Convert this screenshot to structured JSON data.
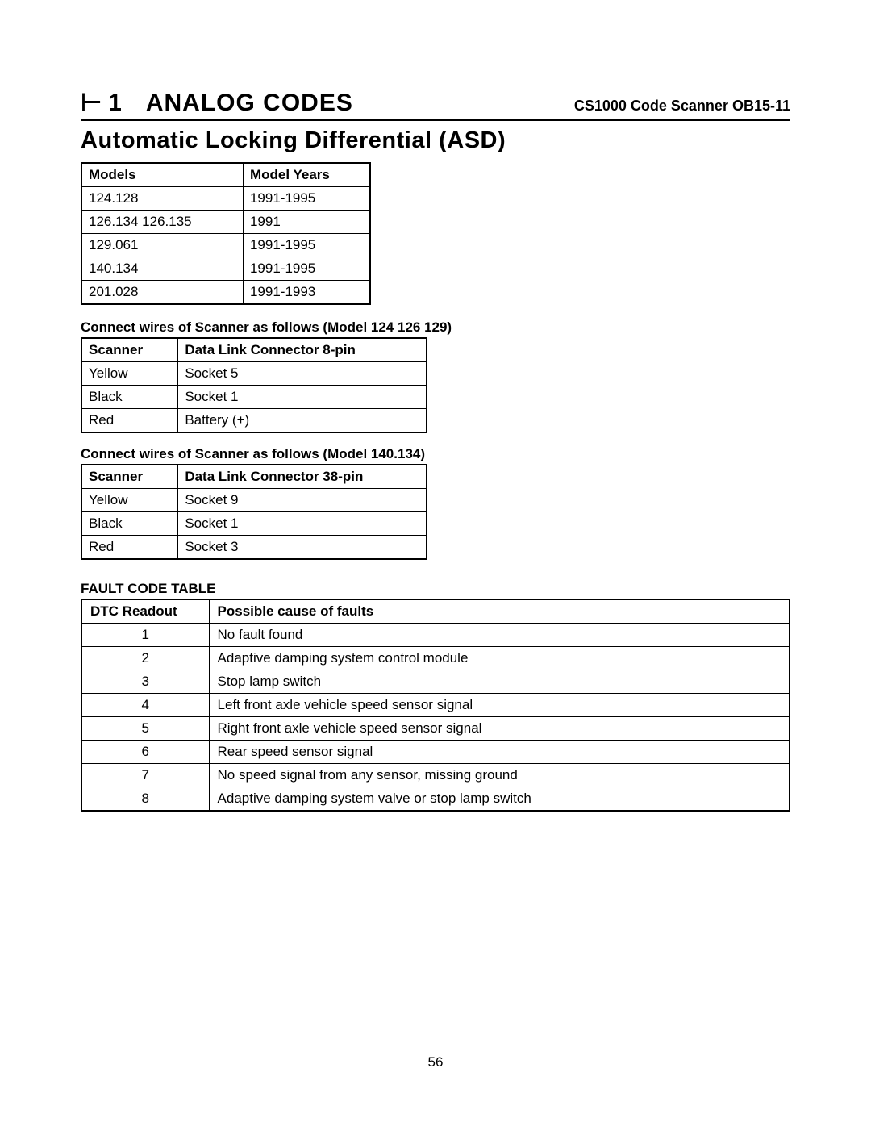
{
  "header": {
    "icon_glyph": "⊢",
    "icon_num": "1",
    "title": "ANALOG CODES",
    "subtitle": "CS1000 Code Scanner  OB15-11"
  },
  "section_title": "Automatic Locking Differential (ASD)",
  "models_table": {
    "columns": [
      "Models",
      "Model Years"
    ],
    "rows": [
      [
        "124.128",
        "1991-1995"
      ],
      [
        "126.134  126.135",
        "1991"
      ],
      [
        "129.061",
        "1991-1995"
      ],
      [
        "140.134",
        "1991-1995"
      ],
      [
        "201.028",
        "1991-1993"
      ]
    ]
  },
  "conn1": {
    "caption": "Connect wires of Scanner as follows (Model 124 126 129)",
    "columns": [
      "Scanner",
      "Data Link Connector 8-pin"
    ],
    "rows": [
      [
        "Yellow",
        "Socket  5"
      ],
      [
        "Black",
        "Socket  1"
      ],
      [
        "Red",
        "Battery (+)"
      ]
    ]
  },
  "conn2": {
    "caption": "Connect wires of Scanner as follows (Model 140.134)",
    "columns": [
      "Scanner",
      "Data Link Connector 38-pin"
    ],
    "rows": [
      [
        "Yellow",
        "Socket  9"
      ],
      [
        "Black",
        "Socket  1"
      ],
      [
        "Red",
        "Socket  3"
      ]
    ]
  },
  "fault_table": {
    "title": "FAULT CODE TABLE",
    "columns": [
      "DTC Readout",
      "Possible cause of faults"
    ],
    "rows": [
      [
        "1",
        "No fault found"
      ],
      [
        "2",
        "Adaptive damping system control module"
      ],
      [
        "3",
        "Stop lamp switch"
      ],
      [
        "4",
        "Left front axle vehicle speed sensor signal"
      ],
      [
        "5",
        "Right front axle vehicle speed sensor signal"
      ],
      [
        "6",
        "Rear speed sensor signal"
      ],
      [
        "7",
        "No speed signal from any sensor, missing ground"
      ],
      [
        "8",
        "Adaptive damping system valve or stop lamp switch"
      ]
    ]
  },
  "page_number": "56"
}
